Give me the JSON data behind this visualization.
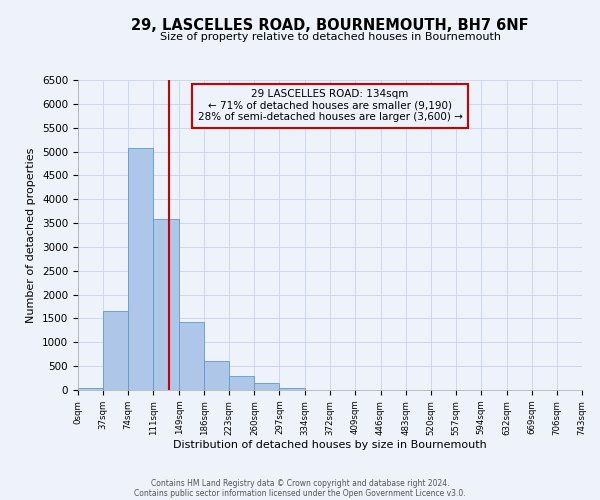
{
  "title": "29, LASCELLES ROAD, BOURNEMOUTH, BH7 6NF",
  "subtitle": "Size of property relative to detached houses in Bournemouth",
  "xlabel": "Distribution of detached houses by size in Bournemouth",
  "ylabel": "Number of detached properties",
  "bin_edges": [
    0,
    37,
    74,
    111,
    149,
    186,
    223,
    260,
    297,
    334,
    372,
    409,
    446,
    483,
    520,
    557,
    594,
    632,
    669,
    706,
    743
  ],
  "bar_values": [
    50,
    1650,
    5080,
    3580,
    1430,
    610,
    295,
    140,
    50,
    10,
    5,
    0,
    0,
    0,
    0,
    0,
    0,
    0,
    0,
    0
  ],
  "bar_color": "#aec6e8",
  "bar_edge_color": "#5b9bd5",
  "property_line_x": 134,
  "property_line_color": "#cc0000",
  "annotation_title": "29 LASCELLES ROAD: 134sqm",
  "annotation_line1": "← 71% of detached houses are smaller (9,190)",
  "annotation_line2": "28% of semi-detached houses are larger (3,600) →",
  "annotation_box_color": "#cc0000",
  "ylim": [
    0,
    6500
  ],
  "yticks": [
    0,
    500,
    1000,
    1500,
    2000,
    2500,
    3000,
    3500,
    4000,
    4500,
    5000,
    5500,
    6000,
    6500
  ],
  "tick_labels": [
    "0sqm",
    "37sqm",
    "74sqm",
    "111sqm",
    "149sqm",
    "186sqm",
    "223sqm",
    "260sqm",
    "297sqm",
    "334sqm",
    "372sqm",
    "409sqm",
    "446sqm",
    "483sqm",
    "520sqm",
    "557sqm",
    "594sqm",
    "632sqm",
    "669sqm",
    "706sqm",
    "743sqm"
  ],
  "footer1": "Contains HM Land Registry data © Crown copyright and database right 2024.",
  "footer2": "Contains public sector information licensed under the Open Government Licence v3.0.",
  "background_color": "#eef2fa",
  "grid_color": "#c8d4e8"
}
